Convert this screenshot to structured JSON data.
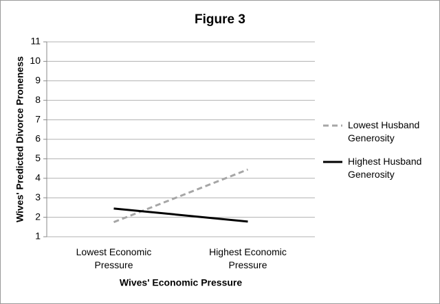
{
  "chart_data": {
    "type": "line",
    "title": "Figure 3",
    "x_label": "Wives' Economic Pressure",
    "y_label": "Wives' Predicted Divorce Proneness",
    "categories": [
      "Lowest Economic Pressure",
      "Highest Economic Pressure"
    ],
    "series": [
      {
        "name": "Lowest Husband Generosity",
        "color": "#a6a6a6",
        "line_style": "dashed",
        "values": [
          1.75,
          4.45
        ]
      },
      {
        "name": "Highest Husband Generosity",
        "color": "#000000",
        "line_style": "solid",
        "values": [
          2.45,
          1.78
        ]
      }
    ],
    "ylim": [
      1,
      11
    ],
    "yticks": [
      1,
      2,
      3,
      4,
      5,
      6,
      7,
      8,
      9,
      10,
      11
    ],
    "grid": true,
    "legend": "right"
  }
}
